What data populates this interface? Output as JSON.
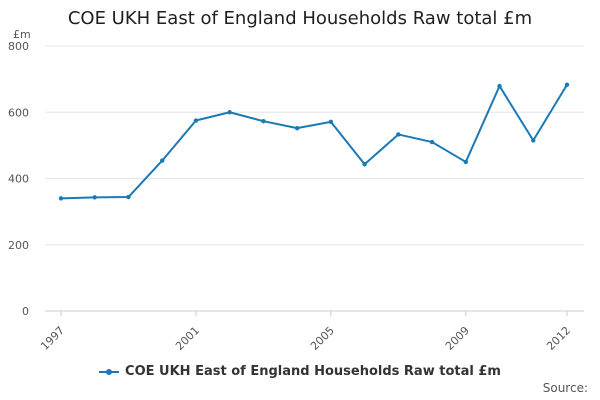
{
  "chart_data": {
    "type": "line",
    "title": "COE UKH East of England Households Raw total £m",
    "ylabel": "£m",
    "xlabel": "",
    "x": [
      1997,
      1998,
      1999,
      2000,
      2001,
      2002,
      2003,
      2004,
      2005,
      2006,
      2007,
      2008,
      2009,
      2010,
      2011,
      2012
    ],
    "x_tick_labels": [
      "1997",
      "2001",
      "2005",
      "2009",
      "2012"
    ],
    "y_tick_labels": [
      "0",
      "200",
      "400",
      "600",
      "800"
    ],
    "ylim": [
      0,
      800
    ],
    "grid": true,
    "legend_position": "bottom",
    "series": [
      {
        "name": "COE UKH East of England Households Raw total £m",
        "color": "#1a7ab5",
        "values": [
          340,
          343,
          344,
          454,
          575,
          600,
          573,
          552,
          571,
          443,
          533,
          510,
          450,
          679,
          515,
          683
        ]
      }
    ],
    "source_label": "Source:"
  }
}
